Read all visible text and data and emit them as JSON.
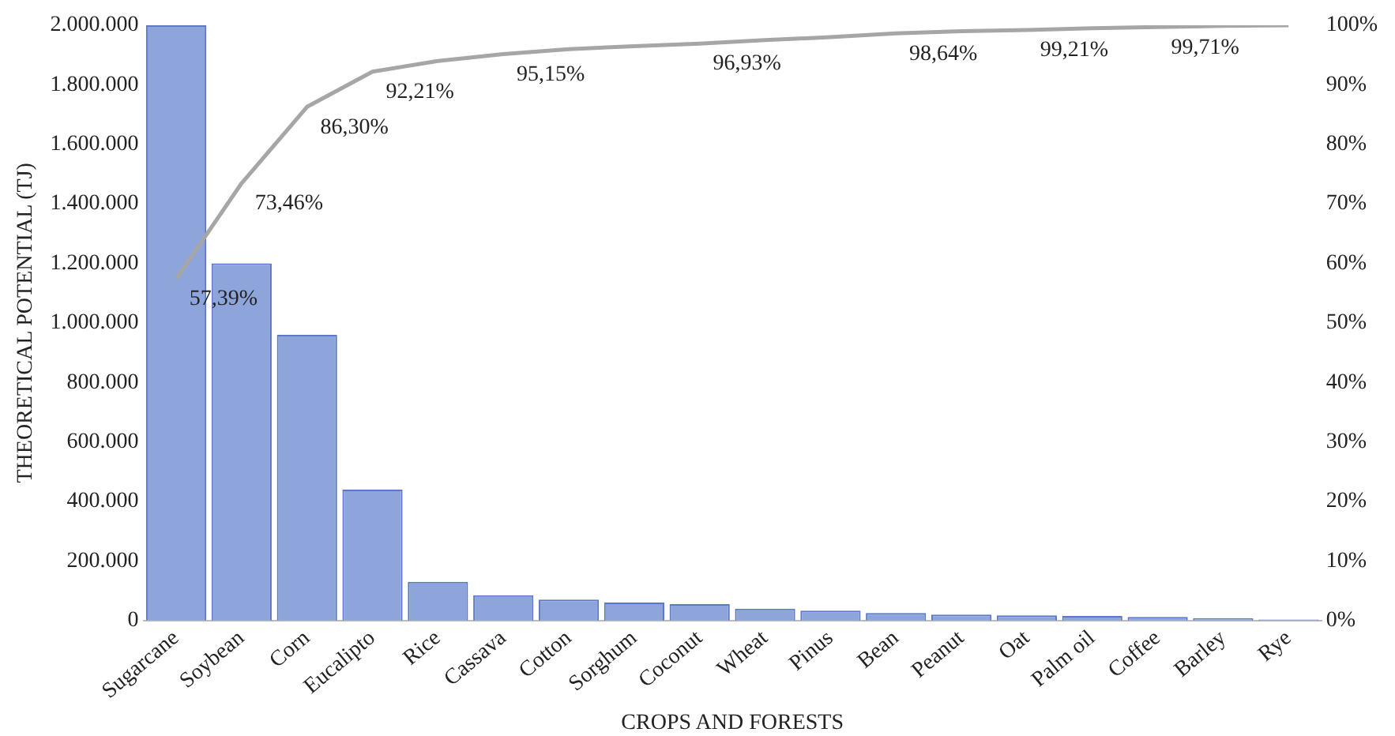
{
  "chart_data": {
    "type": "bar",
    "xlabel": "CROPS AND FORESTS",
    "ylabel": "THEORETICAL POTENTIAL (TJ)",
    "categories": [
      "Sugarcane",
      "Soybean",
      "Corn",
      "Eucalipto",
      "Rice",
      "Cassava",
      "Cotton",
      "Sorghum",
      "Coconut",
      "Wheat",
      "Pinus",
      "Bean",
      "Peanut",
      "Oat",
      "Palm oil",
      "Coffee",
      "Barley",
      "Rye"
    ],
    "series": [
      {
        "color": "#8ea5db",
        "values": [
          2000000,
          1200000,
          960000,
          440000,
          130000,
          85000,
          70000,
          60000,
          55000,
          40000,
          33000,
          25000,
          20000,
          17000,
          15000,
          12000,
          8000,
          3000
        ]
      },
      {
        "type": "line",
        "axis": "y2",
        "color": "#a6a6a6",
        "values": [
          57.39,
          73.46,
          86.3,
          92.21,
          94,
          95.15,
          96,
          96.5,
          96.93,
          97.5,
          98,
          98.64,
          99,
          99.21,
          99.5,
          99.71,
          99.9,
          100
        ],
        "value_labels": [
          "57,39%",
          "73,46%",
          "86,30%",
          "92,21%",
          null,
          "95,15%",
          null,
          null,
          "96,93%",
          null,
          null,
          "98,64%",
          null,
          "99,21%",
          null,
          "99,71%",
          null,
          null
        ]
      }
    ],
    "ylim": [
      0,
      2000000
    ],
    "yticks": [
      {
        "value": 0,
        "label": "0"
      },
      {
        "value": 200000,
        "label": "200.000"
      },
      {
        "value": 400000,
        "label": "400.000"
      },
      {
        "value": 600000,
        "label": "600.000"
      },
      {
        "value": 800000,
        "label": "800.000"
      },
      {
        "value": 1000000,
        "label": "1.000.000"
      },
      {
        "value": 1200000,
        "label": "1.200.000"
      },
      {
        "value": 1400000,
        "label": "1.400.000"
      },
      {
        "value": 1600000,
        "label": "1.600.000"
      },
      {
        "value": 1800000,
        "label": "1.800.000"
      },
      {
        "value": 2000000,
        "label": "2.000.000"
      }
    ],
    "y2lim": [
      0,
      100
    ],
    "y2ticks": [
      {
        "value": 0,
        "label": "0%"
      },
      {
        "value": 10,
        "label": "10%"
      },
      {
        "value": 20,
        "label": "20%"
      },
      {
        "value": 30,
        "label": "30%"
      },
      {
        "value": 40,
        "label": "40%"
      },
      {
        "value": 50,
        "label": "50%"
      },
      {
        "value": 60,
        "label": "60%"
      },
      {
        "value": 70,
        "label": "70%"
      },
      {
        "value": 80,
        "label": "80%"
      },
      {
        "value": 90,
        "label": "90%"
      },
      {
        "value": 100,
        "label": "100%"
      }
    ],
    "grid": false,
    "legend": false,
    "marker": "none"
  }
}
